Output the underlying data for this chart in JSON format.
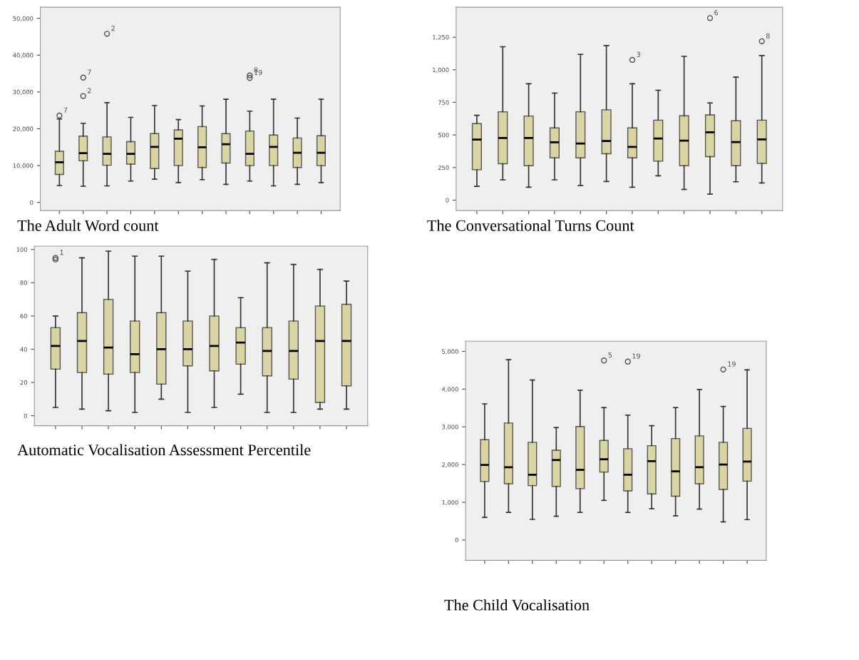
{
  "chart_data": [
    {
      "type": "box",
      "title": "The Adult Word count",
      "categories": [
        null,
        null,
        null,
        null,
        null,
        null,
        null,
        null,
        null,
        null,
        null,
        null
      ],
      "color": "#d9d4a1",
      "ylim": [
        -2200,
        53000
      ],
      "yticks": [
        0,
        {
          "value": 10000,
          "label": "10,000"
        },
        {
          "value": 20000,
          "label": "20,000"
        },
        {
          "value": 30000,
          "label": "30,000"
        },
        {
          "value": 40000,
          "label": "40,000"
        },
        {
          "value": 50000,
          "label": "50,000"
        }
      ],
      "grid": false,
      "marker": "circle",
      "boxes": [
        {
          "low": 4600,
          "q1": 7600,
          "median": 10900,
          "q3": 13900,
          "high": 22700,
          "outliers": [
            23600
          ]
        },
        {
          "low": 4400,
          "q1": 11300,
          "median": 13400,
          "q3": 18000,
          "high": 21500,
          "outliers": [
            28900,
            33900
          ]
        },
        {
          "low": 4500,
          "q1": 10100,
          "median": 13200,
          "q3": 17800,
          "high": 27100,
          "outliers": [
            45800
          ]
        },
        {
          "low": 5800,
          "q1": 10400,
          "median": 13200,
          "q3": 16500,
          "high": 23100
        },
        {
          "low": 6300,
          "q1": 9200,
          "median": 15100,
          "q3": 18700,
          "high": 26300
        },
        {
          "low": 5400,
          "q1": 10000,
          "median": 17300,
          "q3": 19700,
          "high": 22500
        },
        {
          "low": 6200,
          "q1": 9500,
          "median": 15000,
          "q3": 20600,
          "high": 26200
        },
        {
          "low": 4900,
          "q1": 10700,
          "median": 15800,
          "q3": 18700,
          "high": 28000
        },
        {
          "low": 5800,
          "q1": 10000,
          "median": 13200,
          "q3": 19400,
          "high": 24800,
          "outliers": [
            33800,
            34500
          ]
        },
        {
          "low": 4500,
          "q1": 10000,
          "median": 15100,
          "q3": 18300,
          "high": 28000
        },
        {
          "low": 4900,
          "q1": 9500,
          "median": 13500,
          "q3": 17500,
          "high": 22900
        },
        {
          "low": 5400,
          "q1": 10000,
          "median": 13500,
          "q3": 18100,
          "high": 28000
        }
      ],
      "annotations": [
        "7",
        "2",
        "7",
        "2",
        "19",
        "8"
      ]
    },
    {
      "type": "box",
      "title": "The Conversational Turns Count",
      "categories": [
        null,
        null,
        null,
        null,
        null,
        null,
        null,
        null,
        null,
        null,
        null,
        null
      ],
      "color": "#d9d4a1",
      "ylim": [
        -80,
        1480
      ],
      "yticks": [
        0,
        250,
        500,
        750,
        {
          "value": 1000,
          "label": "1,000"
        },
        {
          "value": 1250,
          "label": "1,250"
        }
      ],
      "grid": false,
      "marker": "circle",
      "boxes": [
        {
          "low": 106,
          "q1": 233,
          "median": 464,
          "q3": 587,
          "high": 651
        },
        {
          "low": 156,
          "q1": 279,
          "median": 477,
          "q3": 678,
          "high": 1177
        },
        {
          "low": 99,
          "q1": 264,
          "median": 477,
          "q3": 645,
          "high": 893
        },
        {
          "low": 156,
          "q1": 324,
          "median": 444,
          "q3": 554,
          "high": 821
        },
        {
          "low": 112,
          "q1": 324,
          "median": 434,
          "q3": 678,
          "high": 1118
        },
        {
          "low": 143,
          "q1": 356,
          "median": 453,
          "q3": 693,
          "high": 1186
        },
        {
          "low": 99,
          "q1": 324,
          "median": 409,
          "q3": 554,
          "high": 893,
          "outliers": [
            1076
          ]
        },
        {
          "low": 187,
          "q1": 299,
          "median": 473,
          "q3": 614,
          "high": 843
        },
        {
          "low": 82,
          "q1": 264,
          "median": 456,
          "q3": 647,
          "high": 1103
        },
        {
          "low": 46,
          "q1": 334,
          "median": 521,
          "q3": 654,
          "high": 746,
          "outliers": [
            1397
          ]
        },
        {
          "low": 141,
          "q1": 264,
          "median": 445,
          "q3": 609,
          "high": 944
        },
        {
          "low": 132,
          "q1": 282,
          "median": 466,
          "q3": 614,
          "high": 1109,
          "outliers": [
            1219
          ]
        }
      ],
      "annotations": [
        "3",
        "6",
        "8"
      ]
    },
    {
      "type": "box",
      "title": "Automatic Vocalisation Assessment Percentile",
      "categories": [
        null,
        null,
        null,
        null,
        null,
        null,
        null,
        null,
        null,
        null,
        null,
        null
      ],
      "color": "#d9d4a1",
      "ylim": [
        -6,
        102
      ],
      "yticks": [
        0,
        20,
        40,
        60,
        80,
        100
      ],
      "grid": false,
      "marker": "circle",
      "boxes": [
        {
          "low": 5,
          "q1": 28,
          "median": 42,
          "q3": 53,
          "high": 60,
          "outliers": [
            95,
            94
          ]
        },
        {
          "low": 4,
          "q1": 26,
          "median": 45,
          "q3": 62,
          "high": 95
        },
        {
          "low": 3,
          "q1": 25,
          "median": 41,
          "q3": 70,
          "high": 99
        },
        {
          "low": 2,
          "q1": 26,
          "median": 37,
          "q3": 57,
          "high": 96
        },
        {
          "low": 10,
          "q1": 19,
          "median": 40,
          "q3": 62,
          "high": 96
        },
        {
          "low": 2,
          "q1": 30,
          "median": 40,
          "q3": 57,
          "high": 87
        },
        {
          "low": 5,
          "q1": 27,
          "median": 42,
          "q3": 60,
          "high": 94
        },
        {
          "low": 13,
          "q1": 31,
          "median": 44,
          "q3": 53,
          "high": 71
        },
        {
          "low": 2,
          "q1": 24,
          "median": 39,
          "q3": 53,
          "high": 92
        },
        {
          "low": 2,
          "q1": 22,
          "median": 39,
          "q3": 57,
          "high": 91
        },
        {
          "low": 4,
          "q1": 8,
          "median": 45,
          "q3": 66,
          "high": 88
        },
        {
          "low": 4,
          "q1": 18,
          "median": 45,
          "q3": 67,
          "high": 81
        }
      ],
      "annotations": [
        "1"
      ]
    },
    {
      "type": "box",
      "title": "The Child Vocalisation",
      "categories": [
        null,
        null,
        null,
        null,
        null,
        null,
        null,
        null,
        null,
        null,
        null,
        null
      ],
      "color": "#d9d4a1",
      "ylim": [
        -540,
        5270
      ],
      "yticks": [
        0,
        {
          "value": 1000,
          "label": "1,000"
        },
        {
          "value": 2000,
          "label": "2,000"
        },
        {
          "value": 3000,
          "label": "3,000"
        },
        {
          "value": 4000,
          "label": "4,000"
        },
        {
          "value": 5000,
          "label": "5,000"
        }
      ],
      "grid": false,
      "marker": "circle",
      "boxes": [
        {
          "low": 600,
          "q1": 1550,
          "median": 1990,
          "q3": 2660,
          "high": 3610
        },
        {
          "low": 730,
          "q1": 1490,
          "median": 1930,
          "q3": 3100,
          "high": 4780
        },
        {
          "low": 550,
          "q1": 1440,
          "median": 1730,
          "q3": 2590,
          "high": 4240
        },
        {
          "low": 630,
          "q1": 1420,
          "median": 2120,
          "q3": 2380,
          "high": 2980
        },
        {
          "low": 730,
          "q1": 1360,
          "median": 1860,
          "q3": 3010,
          "high": 3970
        },
        {
          "low": 1050,
          "q1": 1800,
          "median": 2140,
          "q3": 2640,
          "high": 3510,
          "outliers": [
            4760
          ]
        },
        {
          "low": 730,
          "q1": 1300,
          "median": 1730,
          "q3": 2420,
          "high": 3310,
          "outliers": [
            4730
          ]
        },
        {
          "low": 830,
          "q1": 1220,
          "median": 2090,
          "q3": 2500,
          "high": 3030
        },
        {
          "low": 640,
          "q1": 1160,
          "median": 1820,
          "q3": 2690,
          "high": 3510
        },
        {
          "low": 820,
          "q1": 1490,
          "median": 1930,
          "q3": 2760,
          "high": 3990
        },
        {
          "low": 480,
          "q1": 1340,
          "median": 2000,
          "q3": 2590,
          "high": 3540,
          "outliers": [
            4520
          ]
        },
        {
          "low": 540,
          "q1": 1560,
          "median": 2080,
          "q3": 2960,
          "high": 4510
        }
      ],
      "annotations": [
        "5",
        "19",
        "19"
      ]
    }
  ]
}
